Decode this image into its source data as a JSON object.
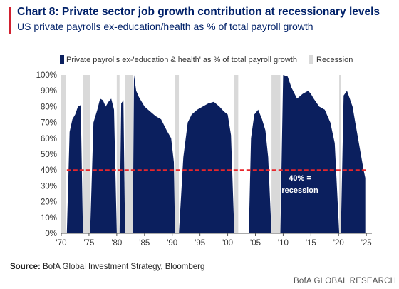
{
  "header": {
    "title": "Chart 8: Private sector job growth contribution at recessionary levels",
    "subtitle": "US private payrolls ex-education/health as % of total payroll growth"
  },
  "footer": {
    "source_label": "Source:",
    "source_text": " BofA Global Investment Strategy, Bloomberg",
    "brand": "BofA GLOBAL RESEARCH"
  },
  "colors": {
    "series": "#0b1f5e",
    "recession": "#d9d9d9",
    "threshold": "#e8262b",
    "accent": "#d1202f",
    "title": "#012169"
  },
  "chart_data": {
    "type": "area",
    "xlim": [
      1970,
      2026
    ],
    "ylim": [
      0,
      100
    ],
    "y_unit": "%",
    "x_tick_values": [
      1970,
      1975,
      1980,
      1985,
      1990,
      1995,
      2000,
      2005,
      2010,
      2015,
      2020,
      2025
    ],
    "x_tick_labels": [
      "'70",
      "'75",
      "'80",
      "'85",
      "'90",
      "'95",
      "'00",
      "'05",
      "'10",
      "'15",
      "'20",
      "'25"
    ],
    "y_tick_values": [
      0,
      10,
      20,
      30,
      40,
      50,
      60,
      70,
      80,
      90,
      100
    ],
    "y_tick_labels": [
      "0%",
      "10%",
      "20%",
      "30%",
      "40%",
      "50%",
      "60%",
      "70%",
      "80%",
      "90%",
      "100%"
    ],
    "legend": {
      "series_label": "Private payrolls ex-'education & health' as % of total payroll growth",
      "recession_label": "Recession",
      "placement": "top"
    },
    "recessions": [
      [
        1969.9,
        1970.9
      ],
      [
        1973.9,
        1975.2
      ],
      [
        1980.0,
        1980.5
      ],
      [
        1981.5,
        1982.9
      ],
      [
        1990.5,
        1991.2
      ],
      [
        2001.2,
        2001.9
      ],
      [
        2007.9,
        2009.5
      ],
      [
        2020.1,
        2020.4
      ]
    ],
    "threshold": {
      "value": 40,
      "label_line1": "40% =",
      "label_line2": "recession"
    },
    "segments": [
      {
        "x": [
          1971.0,
          1971.5,
          1972.0,
          1972.5,
          1973.0,
          1973.5,
          1973.9
        ],
        "y": [
          0,
          64,
          72,
          75,
          80,
          81,
          0
        ]
      },
      {
        "x": [
          1975.2,
          1975.8,
          1976.5,
          1977.0,
          1977.5,
          1978.0,
          1978.5,
          1979.0,
          1979.5,
          1980.0
        ],
        "y": [
          0,
          70,
          78,
          85,
          84,
          80,
          83,
          85,
          78,
          0
        ]
      },
      {
        "x": [
          1980.5,
          1980.8,
          1981.2,
          1981.5
        ],
        "y": [
          0,
          82,
          84,
          0
        ]
      },
      {
        "x": [
          1982.9,
          1983.1,
          1983.5,
          1984.0,
          1985.0,
          1986.0,
          1987.0,
          1988.0,
          1989.0,
          1989.8,
          1990.3,
          1990.5
        ],
        "y": [
          0,
          100,
          90,
          86,
          80,
          77,
          74,
          72,
          65,
          60,
          45,
          0
        ]
      },
      {
        "x": [
          1991.2,
          1992.0,
          1992.8,
          1993.5,
          1994.5,
          1995.5,
          1996.5,
          1997.5,
          1998.5,
          1999.3,
          2000.0,
          2000.6,
          2001.2
        ],
        "y": [
          0,
          48,
          70,
          75,
          78,
          80,
          82,
          83,
          80,
          77,
          75,
          62,
          0
        ]
      },
      {
        "x": [
          2001.9,
          2003.8,
          2004.2,
          2004.8,
          2005.5,
          2006.2,
          2006.8,
          2007.3,
          2007.9
        ],
        "y": [
          0,
          0,
          60,
          75,
          78,
          72,
          65,
          48,
          0
        ]
      },
      {
        "x": [
          2009.5,
          2010.0,
          2010.8,
          2011.5,
          2012.5,
          2013.5,
          2014.5,
          2015.0,
          2015.5,
          2016.5,
          2017.5,
          2018.5,
          2019.3,
          2020.1
        ],
        "y": [
          0,
          100,
          99,
          92,
          85,
          88,
          90,
          88,
          85,
          80,
          78,
          70,
          57,
          0
        ]
      },
      {
        "x": [
          2020.4,
          2020.9,
          2021.5,
          2022.0,
          2022.5,
          2023.0,
          2023.5,
          2024.0,
          2024.5,
          2024.8,
          2024.8
        ],
        "y": [
          0,
          87,
          90,
          85,
          80,
          70,
          60,
          50,
          40,
          35,
          0
        ]
      }
    ]
  }
}
